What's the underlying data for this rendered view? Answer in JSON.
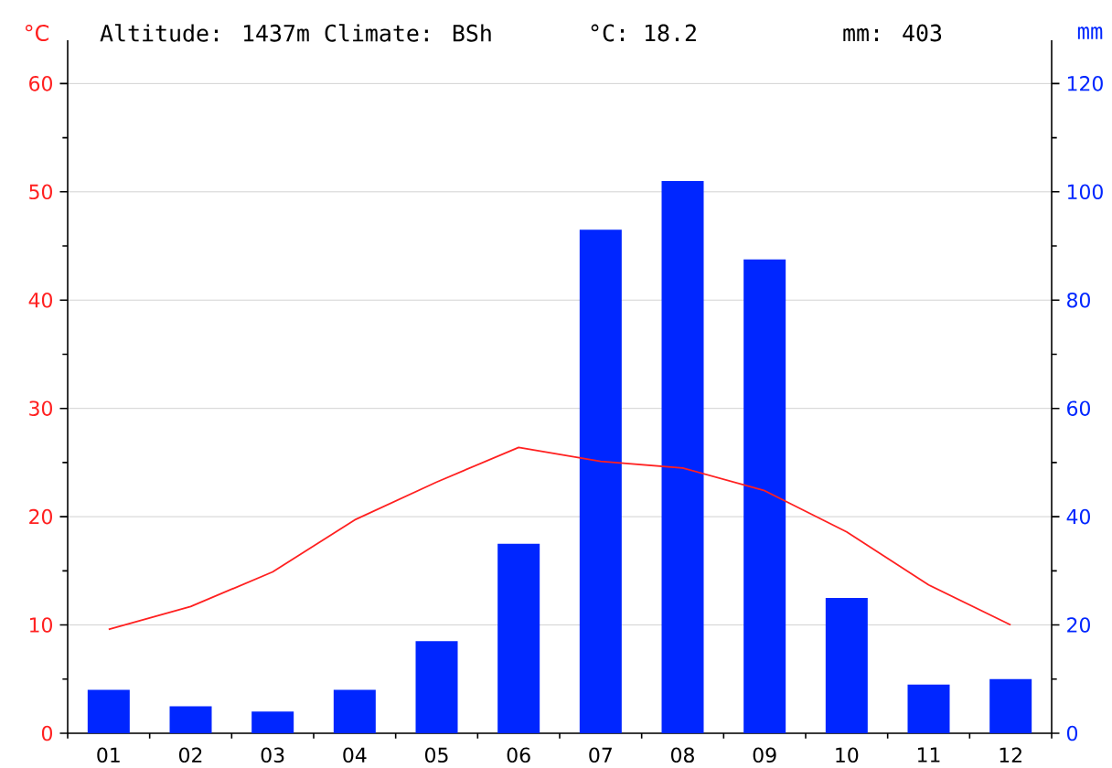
{
  "chart_data": {
    "type": "bar",
    "annotations": [
      "Altitude: 1437m Climate: BSh",
      "°C: 18.2",
      "mm: 403"
    ],
    "ylabel": "°C",
    "y2label": "mm",
    "categories": [
      "01",
      "02",
      "03",
      "04",
      "05",
      "06",
      "07",
      "08",
      "09",
      "10",
      "11",
      "12"
    ],
    "series": [
      {
        "axis": "y2",
        "color": "#0026ff",
        "values": [
          8,
          5,
          4,
          8,
          17,
          35,
          93,
          102,
          87.5,
          25,
          9,
          10
        ]
      },
      {
        "type": "line",
        "axis": "y",
        "color": "#ff2020",
        "values": [
          9.6,
          11.7,
          14.9,
          19.7,
          23.2,
          26.4,
          25.1,
          24.5,
          22.4,
          18.6,
          13.7,
          10.0
        ]
      }
    ],
    "ylim": [
      0,
      64
    ],
    "yticks": [
      0,
      10,
      20,
      30,
      40,
      50,
      60
    ],
    "y2lim": [
      0,
      128
    ],
    "y2ticks": [
      0,
      20,
      40,
      60,
      80,
      100,
      120
    ],
    "grid": "y",
    "marker": "none",
    "line_style": "solid"
  }
}
